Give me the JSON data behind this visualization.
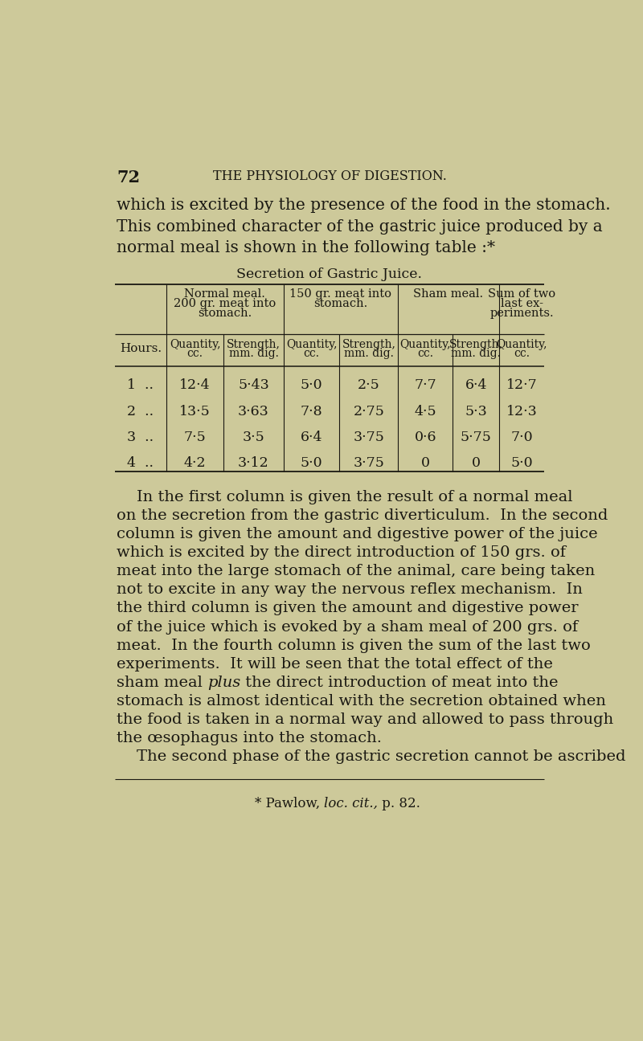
{
  "bg_color": "#cdc99a",
  "text_color": "#1a1812",
  "page_number": "72",
  "header": "THE PHYSIOLOGY OF DIGESTION.",
  "intro_text": [
    "which is excited by the presence of the food in the stomach.",
    "This combined character of the gastric juice produced by a",
    "normal meal is shown in the following table :*"
  ],
  "table_title": "Secretion of Gastric Juice.",
  "hours": [
    "1  ..",
    "2  ..",
    "3  ..",
    "4  .."
  ],
  "table_data": [
    [
      "12·4",
      "5·43",
      "5·0",
      "2·5",
      "7·7",
      "6·4",
      "12·7"
    ],
    [
      "13·5",
      "3·63",
      "7·8",
      "2·75",
      "4·5",
      "5·3",
      "12·3"
    ],
    [
      "7·5",
      "3·5",
      "6·4",
      "3·75",
      "0·6",
      "5·75",
      "7·0"
    ],
    [
      "4·2",
      "3·12",
      "5·0",
      "3·75",
      "0",
      "0",
      "5·0"
    ]
  ],
  "body_text_before_plus": [
    "    In the first column is given the result of a normal meal",
    "on the secretion from the gastric diverticulum.  In the second",
    "column is given the amount and digestive power of the juice",
    "which is excited by the direct introduction of 150 grs. of",
    "meat into the large stomach of the animal, care being taken",
    "not to excite in any way the nervous reflex mechanism.  In",
    "the third column is given the amount and digestive power",
    "of the juice which is evoked by a sham meal of 200 grs. of",
    "meat.  In the fourth column is given the sum of the last two",
    "experiments.  It will be seen that the total effect of the",
    "sham meal "
  ],
  "plus_word": "plus",
  "body_text_after_plus": [
    " the direct introduction of meat into the",
    "stomach is almost identical with the secretion obtained when",
    "the food is taken in a normal way and allowed to pass through",
    "the œsophagus into the stomach.",
    "    The second phase of the gastric secretion cannot be ascribed"
  ],
  "footnote_prefix": "* Pawlow, ",
  "footnote_italic": "loc. cit.,",
  "footnote_suffix": " p. 82."
}
